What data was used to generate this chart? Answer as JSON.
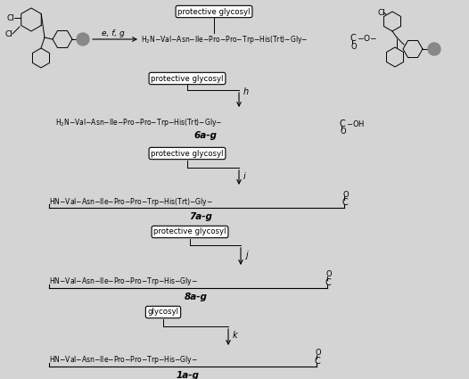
{
  "bg_color": "#d4d4d4",
  "fig_width": 5.26,
  "fig_height": 4.25,
  "dpi": 100,
  "label_6ag": "6a-g",
  "label_7ag": "7a-g",
  "label_8ag": "8a-g",
  "label_1ag": "1a-g",
  "step_h": "h",
  "step_i": "i",
  "step_j": "j",
  "step_k": "k",
  "step_efg": "e, f, g",
  "box_prot_glycosyl": "protective glycosyl",
  "box_glycosyl": "glycosyl"
}
